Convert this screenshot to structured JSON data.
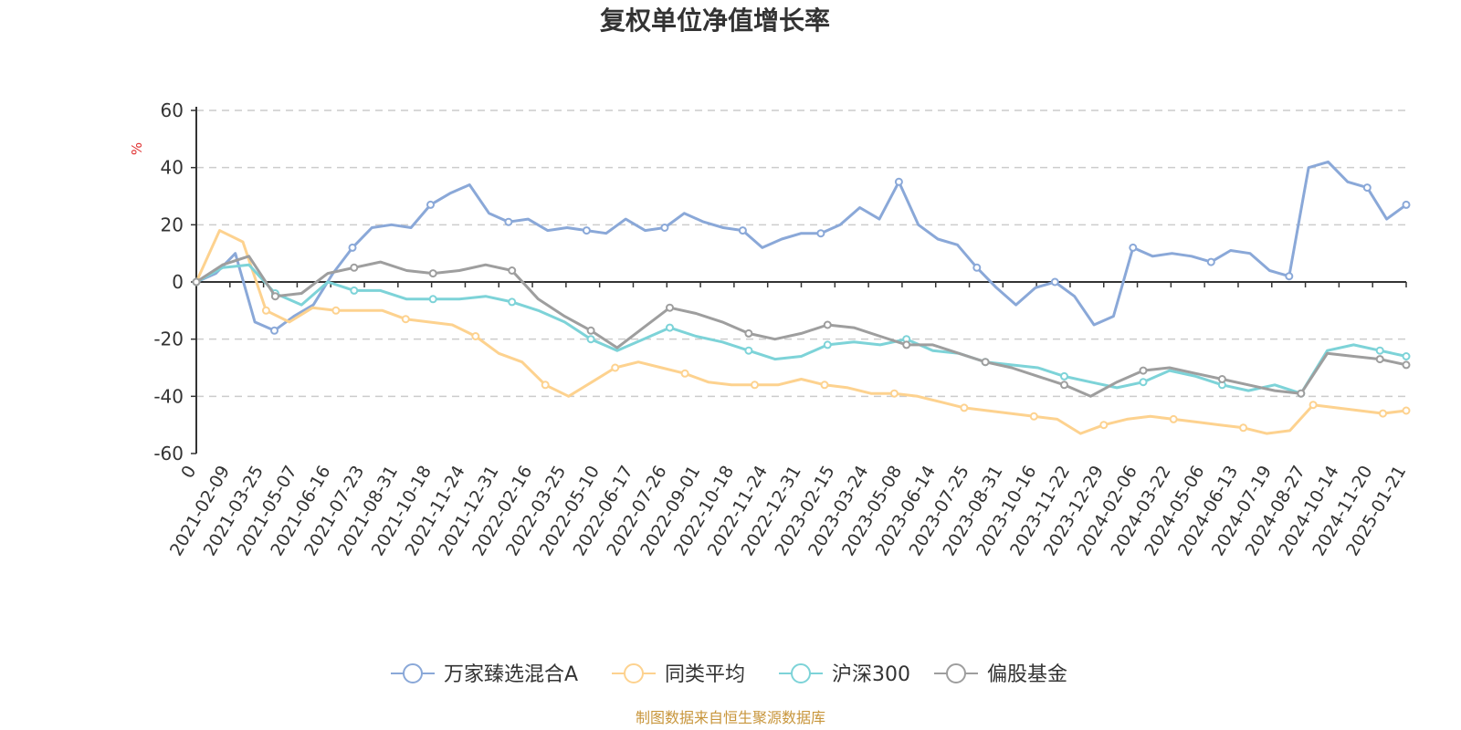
{
  "chart_data": {
    "type": "line",
    "title": "复权单位净值增长率",
    "ylabel": "%",
    "ylim": [
      -60,
      60
    ],
    "y_ticks": [
      "60",
      "40",
      "20",
      "0",
      "-20",
      "-40",
      "-60"
    ],
    "grid": true,
    "legend_position": "bottom-center",
    "x_ticks": [
      "0",
      "2021-02-09",
      "2021-03-25",
      "2021-05-07",
      "2021-06-16",
      "2021-07-23",
      "2021-08-31",
      "2021-10-18",
      "2021-11-24",
      "2021-12-31",
      "2022-02-16",
      "2022-03-25",
      "2022-05-10",
      "2022-06-17",
      "2022-07-26",
      "2022-09-01",
      "2022-10-18",
      "2022-11-24",
      "2022-12-31",
      "2023-02-15",
      "2023-03-24",
      "2023-05-08",
      "2023-06-14",
      "2023-07-25",
      "2023-08-31",
      "2023-10-16",
      "2023-11-22",
      "2023-12-29",
      "2024-02-06",
      "2024-03-22",
      "2024-05-06",
      "2024-06-13",
      "2024-07-19",
      "2024-08-27",
      "2024-10-14",
      "2024-11-20",
      "2025-01-21"
    ],
    "series": [
      {
        "name": "万家臻选混合A",
        "color": "#8aa8d8",
        "values": [
          0,
          3,
          10,
          -14,
          -17,
          -12,
          -8,
          3,
          12,
          19,
          20,
          19,
          27,
          31,
          34,
          24,
          21,
          22,
          18,
          19,
          18,
          17,
          22,
          18,
          19,
          24,
          21,
          19,
          18,
          12,
          15,
          17,
          17,
          20,
          26,
          22,
          35,
          20,
          15,
          13,
          5,
          -2,
          -8,
          -2,
          0,
          -5,
          -15,
          -12,
          12,
          9,
          10,
          9,
          7,
          11,
          10,
          4,
          2,
          40,
          42,
          35,
          33,
          22,
          27
        ]
      },
      {
        "name": "同类平均",
        "color": "#fdd28f",
        "values": [
          0,
          18,
          14,
          -10,
          -14,
          -9,
          -10,
          -10,
          -10,
          -13,
          -14,
          -15,
          -19,
          -25,
          -28,
          -36,
          -40,
          -35,
          -30,
          -28,
          -30,
          -32,
          -35,
          -36,
          -36,
          -36,
          -34,
          -36,
          -37,
          -39,
          -39,
          -40,
          -42,
          -44,
          -45,
          -46,
          -47,
          -48,
          -53,
          -50,
          -48,
          -47,
          -48,
          -49,
          -50,
          -51,
          -53,
          -52,
          -43,
          -44,
          -45,
          -46,
          -45
        ]
      },
      {
        "name": "沪深300",
        "color": "#7dd3d8",
        "values": [
          0,
          5,
          6,
          -4,
          -8,
          0,
          -3,
          -3,
          -6,
          -6,
          -6,
          -5,
          -7,
          -10,
          -14,
          -20,
          -24,
          -20,
          -16,
          -19,
          -21,
          -24,
          -27,
          -26,
          -22,
          -21,
          -22,
          -20,
          -24,
          -25,
          -28,
          -29,
          -30,
          -33,
          -35,
          -37,
          -35,
          -31,
          -33,
          -36,
          -38,
          -36,
          -39,
          -24,
          -22,
          -24,
          -26
        ]
      },
      {
        "name": "偏股基金",
        "color": "#9e9e9e",
        "values": [
          0,
          6,
          9,
          -5,
          -4,
          3,
          5,
          7,
          4,
          3,
          4,
          6,
          4,
          -6,
          -12,
          -17,
          -23,
          -16,
          -9,
          -11,
          -14,
          -18,
          -20,
          -18,
          -15,
          -16,
          -19,
          -22,
          -22,
          -25,
          -28,
          -30,
          -33,
          -36,
          -40,
          -35,
          -31,
          -30,
          -32,
          -34,
          -36,
          -38,
          -39,
          -25,
          -26,
          -27,
          -29
        ]
      }
    ]
  },
  "legend": {
    "items": [
      "万家臻选混合A",
      "同类平均",
      "沪深300",
      "偏股基金"
    ]
  },
  "footer": {
    "source": "制图数据来自恒生聚源数据库",
    "source_color": "#c8963c",
    "unit_color": "#e03030"
  }
}
